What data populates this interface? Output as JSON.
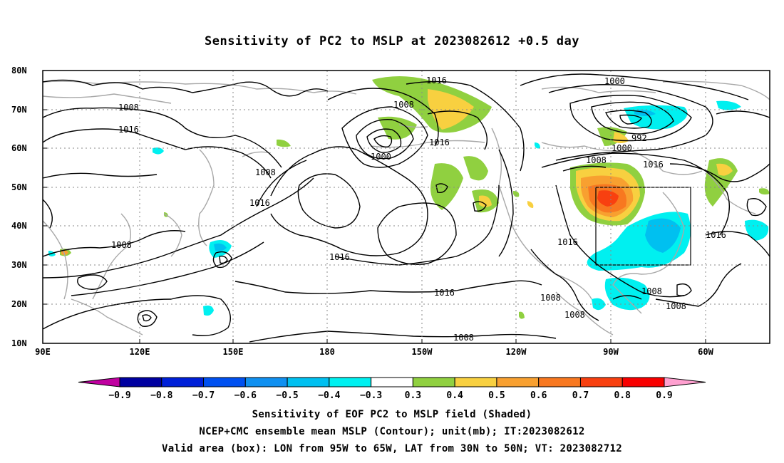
{
  "title": "Sensitivity of PC2 to MSLP at 2023082612 +0.5 day",
  "lat_ticks": [
    "80N",
    "70N",
    "60N",
    "50N",
    "40N",
    "30N",
    "20N",
    "10N"
  ],
  "lon_ticks": [
    "90E",
    "120E",
    "150E",
    "180",
    "150W",
    "120W",
    "90W",
    "60W"
  ],
  "contour_labels": {
    "c1016_top": "1016",
    "c1008_pole": "1008",
    "c1000_ak": "1000",
    "c1016_gulf": "1016",
    "c1008_w1": "1008",
    "c1016_w1": "1016",
    "c1008_jp": "1008",
    "c1016_nw": "1016",
    "c1008_sib": "1008",
    "c1016_cent": "1016",
    "c1016_sub": "1016",
    "c1008_eq": "1008",
    "c1000_gr": "1000",
    "c992": "992",
    "c1000_hud": "1000",
    "c1008_can": "1008",
    "c1016_can": "1016",
    "c1016_atl": "1016",
    "c1016_us": "1016",
    "c1008_mx1": "1008",
    "c1008_mx2": "1008",
    "c1008_car1": "1008",
    "c1008_car2": "1008"
  },
  "colorbar": {
    "colors": [
      "#c000a0",
      "#0000a0",
      "#0020d8",
      "#0050f0",
      "#1090f0",
      "#00c0f0",
      "#00f0f0",
      "#ffffff",
      "#90d040",
      "#f8d040",
      "#f8a030",
      "#f87820",
      "#f84010",
      "#f80000",
      "#ffa0d0"
    ],
    "labels": [
      "−0.9",
      "−0.8",
      "−0.7",
      "−0.6",
      "−0.5",
      "−0.4",
      "−0.3",
      "0.3",
      "0.4",
      "0.5",
      "0.6",
      "0.7",
      "0.8",
      "0.9"
    ]
  },
  "captions": {
    "line1": "Sensitivity of EOF PC2 to MSLP field (Shaded)",
    "line2": "NCEP+CMC ensemble mean MSLP (Contour); unit(mb); IT:2023082612",
    "line3": "Valid area (box): LON from 95W to 65W, LAT from 30N to 50N; VT: 2023082712"
  }
}
